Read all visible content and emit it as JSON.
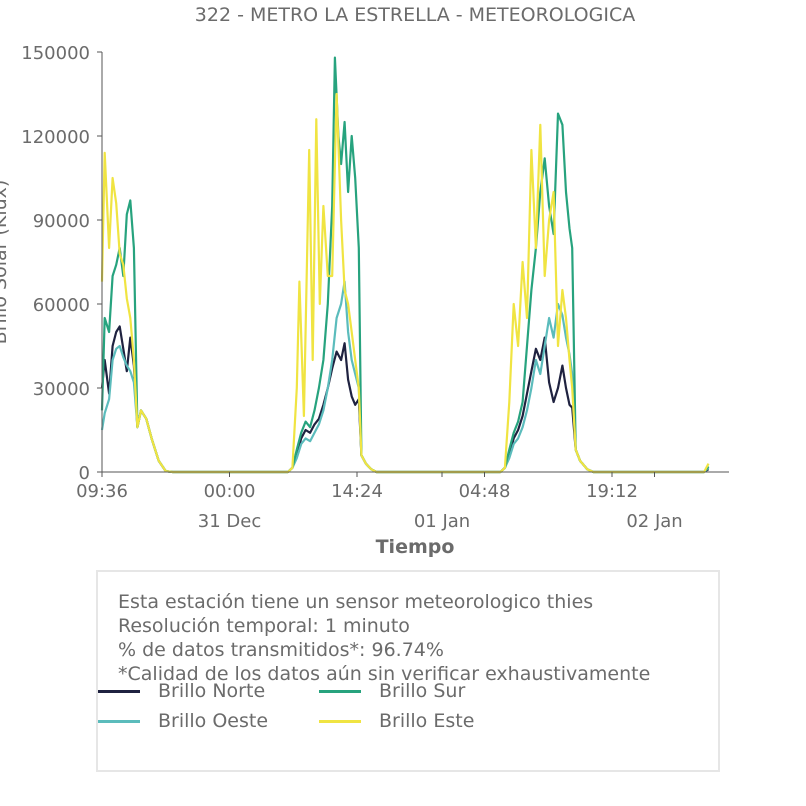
{
  "chart_data": {
    "type": "line",
    "title": "322 - METRO LA ESTRELLA - METEOROLOGICA",
    "xlabel": "Tiempo",
    "ylabel": "Brillo Solar (Klux)",
    "ylim": [
      0,
      150000
    ],
    "yticks": [
      "0",
      "30000",
      "60000",
      "90000",
      "120000",
      "150000"
    ],
    "x_range_hours": [
      0,
      68.5
    ],
    "xticks": [
      {
        "hour": 0.0,
        "label": "09:36",
        "date": ""
      },
      {
        "hour": 14.4,
        "label": "00:00",
        "date": "31 Dec"
      },
      {
        "hour": 28.8,
        "label": "14:24",
        "date": ""
      },
      {
        "hour": 38.4,
        "label": "",
        "date": "01 Jan"
      },
      {
        "hour": 43.2,
        "label": "04:48",
        "date": ""
      },
      {
        "hour": 57.6,
        "label": "19:12",
        "date": ""
      },
      {
        "hour": 62.4,
        "label": "",
        "date": "02 Jan"
      }
    ],
    "series": [
      {
        "name": "Brillo Norte",
        "color": "#1f2240",
        "points": [
          [
            0,
            30000
          ],
          [
            0.3,
            40000
          ],
          [
            0.8,
            28000
          ],
          [
            1.2,
            45000
          ],
          [
            1.6,
            50000
          ],
          [
            2.0,
            52000
          ],
          [
            2.4,
            44000
          ],
          [
            2.8,
            36000
          ],
          [
            3.2,
            48000
          ],
          [
            3.6,
            38000
          ],
          [
            4.0,
            16000
          ],
          [
            4.4,
            22000
          ],
          [
            5.0,
            19000
          ],
          [
            5.6,
            12000
          ],
          [
            6.4,
            4000
          ],
          [
            7.2,
            300
          ],
          [
            8,
            0
          ],
          [
            21,
            0
          ],
          [
            21.5,
            1500
          ],
          [
            22,
            6000
          ],
          [
            22.5,
            12000
          ],
          [
            23,
            15000
          ],
          [
            23.5,
            14000
          ],
          [
            24,
            17000
          ],
          [
            24.5,
            19000
          ],
          [
            25,
            24000
          ],
          [
            25.5,
            30000
          ],
          [
            26,
            37000
          ],
          [
            26.5,
            43000
          ],
          [
            27,
            40000
          ],
          [
            27.4,
            46000
          ],
          [
            27.8,
            33000
          ],
          [
            28.2,
            27000
          ],
          [
            28.6,
            24000
          ],
          [
            29,
            26000
          ],
          [
            29.3,
            6000
          ],
          [
            29.8,
            3000
          ],
          [
            30.4,
            1000
          ],
          [
            31,
            0
          ],
          [
            45,
            0
          ],
          [
            45.5,
            1500
          ],
          [
            46,
            6000
          ],
          [
            46.5,
            12000
          ],
          [
            47,
            15000
          ],
          [
            47.5,
            20000
          ],
          [
            48,
            28000
          ],
          [
            48.5,
            36000
          ],
          [
            49,
            44000
          ],
          [
            49.5,
            40000
          ],
          [
            50,
            48000
          ],
          [
            50.5,
            32000
          ],
          [
            51,
            25000
          ],
          [
            51.5,
            30000
          ],
          [
            52,
            38000
          ],
          [
            52.4,
            30000
          ],
          [
            52.8,
            24000
          ],
          [
            53.1,
            23000
          ],
          [
            53.5,
            8000
          ],
          [
            54,
            4000
          ],
          [
            54.8,
            1000
          ],
          [
            55.5,
            0
          ],
          [
            68,
            0
          ],
          [
            68.5,
            1000
          ]
        ]
      },
      {
        "name": "Brillo Sur",
        "color": "#27a37e",
        "points": [
          [
            0,
            22000
          ],
          [
            0.3,
            55000
          ],
          [
            0.8,
            50000
          ],
          [
            1.2,
            70000
          ],
          [
            1.6,
            74000
          ],
          [
            2.0,
            80000
          ],
          [
            2.4,
            70000
          ],
          [
            2.8,
            92000
          ],
          [
            3.2,
            97000
          ],
          [
            3.6,
            80000
          ],
          [
            4.0,
            16000
          ],
          [
            4.4,
            22000
          ],
          [
            5.0,
            19000
          ],
          [
            5.6,
            12000
          ],
          [
            6.4,
            4000
          ],
          [
            7.2,
            300
          ],
          [
            8,
            0
          ],
          [
            21,
            0
          ],
          [
            21.5,
            1500
          ],
          [
            22,
            8000
          ],
          [
            22.5,
            14000
          ],
          [
            23,
            18000
          ],
          [
            23.5,
            16000
          ],
          [
            24,
            22000
          ],
          [
            24.5,
            30000
          ],
          [
            25,
            40000
          ],
          [
            25.5,
            60000
          ],
          [
            26,
            95000
          ],
          [
            26.3,
            148000
          ],
          [
            26.7,
            120000
          ],
          [
            27,
            110000
          ],
          [
            27.4,
            125000
          ],
          [
            27.8,
            100000
          ],
          [
            28.2,
            120000
          ],
          [
            28.6,
            105000
          ],
          [
            29,
            80000
          ],
          [
            29.3,
            6000
          ],
          [
            29.8,
            3000
          ],
          [
            30.4,
            1000
          ],
          [
            31,
            0
          ],
          [
            45,
            0
          ],
          [
            45.5,
            1500
          ],
          [
            46,
            8000
          ],
          [
            46.5,
            14000
          ],
          [
            47,
            18000
          ],
          [
            47.5,
            25000
          ],
          [
            48,
            45000
          ],
          [
            48.5,
            65000
          ],
          [
            49,
            80000
          ],
          [
            49.5,
            100000
          ],
          [
            50,
            112000
          ],
          [
            50.5,
            95000
          ],
          [
            51,
            85000
          ],
          [
            51.5,
            128000
          ],
          [
            52,
            124000
          ],
          [
            52.4,
            100000
          ],
          [
            52.8,
            87000
          ],
          [
            53.1,
            80000
          ],
          [
            53.5,
            8000
          ],
          [
            54,
            4000
          ],
          [
            54.8,
            1000
          ],
          [
            55.5,
            0
          ],
          [
            68,
            0
          ],
          [
            68.5,
            2000
          ]
        ]
      },
      {
        "name": "Brillo Oeste",
        "color": "#5bbcbc",
        "points": [
          [
            0,
            15000
          ],
          [
            0.3,
            21000
          ],
          [
            0.8,
            26000
          ],
          [
            1.2,
            40000
          ],
          [
            1.6,
            44000
          ],
          [
            2.0,
            45000
          ],
          [
            2.4,
            41000
          ],
          [
            2.8,
            38000
          ],
          [
            3.2,
            36000
          ],
          [
            3.6,
            32000
          ],
          [
            4.0,
            16000
          ],
          [
            4.4,
            22000
          ],
          [
            5.0,
            19000
          ],
          [
            5.6,
            12000
          ],
          [
            6.4,
            4000
          ],
          [
            7.2,
            300
          ],
          [
            8,
            0
          ],
          [
            21,
            0
          ],
          [
            21.5,
            1500
          ],
          [
            22,
            5000
          ],
          [
            22.5,
            10000
          ],
          [
            23,
            12000
          ],
          [
            23.5,
            11000
          ],
          [
            24,
            14000
          ],
          [
            24.5,
            17000
          ],
          [
            25,
            22000
          ],
          [
            25.5,
            30000
          ],
          [
            26,
            40000
          ],
          [
            26.5,
            55000
          ],
          [
            27,
            60000
          ],
          [
            27.4,
            68000
          ],
          [
            27.8,
            50000
          ],
          [
            28.2,
            40000
          ],
          [
            28.6,
            35000
          ],
          [
            29,
            30000
          ],
          [
            29.3,
            6000
          ],
          [
            29.8,
            3000
          ],
          [
            30.4,
            1000
          ],
          [
            31,
            0
          ],
          [
            45,
            0
          ],
          [
            45.5,
            1500
          ],
          [
            46,
            5000
          ],
          [
            46.5,
            10000
          ],
          [
            47,
            12000
          ],
          [
            47.5,
            16000
          ],
          [
            48,
            22000
          ],
          [
            48.5,
            30000
          ],
          [
            49,
            40000
          ],
          [
            49.5,
            35000
          ],
          [
            50,
            45000
          ],
          [
            50.5,
            55000
          ],
          [
            51,
            48000
          ],
          [
            51.5,
            60000
          ],
          [
            52,
            56000
          ],
          [
            52.4,
            48000
          ],
          [
            52.8,
            42000
          ],
          [
            53.1,
            35000
          ],
          [
            53.5,
            8000
          ],
          [
            54,
            4000
          ],
          [
            54.8,
            1000
          ],
          [
            55.5,
            0
          ],
          [
            68,
            0
          ],
          [
            68.5,
            1500
          ]
        ]
      },
      {
        "name": "Brillo Este",
        "color": "#f0e442",
        "points": [
          [
            0,
            68000
          ],
          [
            0.3,
            114000
          ],
          [
            0.8,
            80000
          ],
          [
            1.2,
            105000
          ],
          [
            1.6,
            96000
          ],
          [
            2.0,
            78000
          ],
          [
            2.4,
            74000
          ],
          [
            2.8,
            62000
          ],
          [
            3.2,
            55000
          ],
          [
            3.6,
            40000
          ],
          [
            4.0,
            16000
          ],
          [
            4.4,
            22000
          ],
          [
            5.0,
            19000
          ],
          [
            5.6,
            12000
          ],
          [
            6.4,
            4000
          ],
          [
            7.2,
            300
          ],
          [
            8,
            0
          ],
          [
            21,
            0
          ],
          [
            21.5,
            1500
          ],
          [
            22,
            30000
          ],
          [
            22.3,
            68000
          ],
          [
            22.8,
            20000
          ],
          [
            23.4,
            115000
          ],
          [
            23.8,
            40000
          ],
          [
            24.2,
            126000
          ],
          [
            24.6,
            60000
          ],
          [
            25,
            95000
          ],
          [
            25.5,
            70000
          ],
          [
            26,
            70000
          ],
          [
            26.5,
            135000
          ],
          [
            27,
            90000
          ],
          [
            27.4,
            65000
          ],
          [
            27.8,
            60000
          ],
          [
            28.2,
            50000
          ],
          [
            28.6,
            40000
          ],
          [
            29,
            30000
          ],
          [
            29.3,
            6000
          ],
          [
            29.8,
            3000
          ],
          [
            30.4,
            1000
          ],
          [
            31,
            0
          ],
          [
            45,
            0
          ],
          [
            45.5,
            1500
          ],
          [
            46,
            25000
          ],
          [
            46.5,
            60000
          ],
          [
            47,
            45000
          ],
          [
            47.5,
            75000
          ],
          [
            48,
            55000
          ],
          [
            48.5,
            115000
          ],
          [
            49,
            80000
          ],
          [
            49.5,
            124000
          ],
          [
            50,
            70000
          ],
          [
            50.5,
            90000
          ],
          [
            51,
            100000
          ],
          [
            51.5,
            45000
          ],
          [
            52,
            65000
          ],
          [
            52.4,
            55000
          ],
          [
            52.8,
            40000
          ],
          [
            53.1,
            30000
          ],
          [
            53.5,
            8000
          ],
          [
            54,
            4000
          ],
          [
            54.8,
            1000
          ],
          [
            55.5,
            0
          ],
          [
            68,
            0
          ],
          [
            68.5,
            3000
          ]
        ]
      }
    ]
  },
  "info": {
    "line1": "Esta estación tiene un sensor meteorologico thies",
    "line2": "Resolución temporal: 1 minuto",
    "line3": "% de datos transmitidos*: 96.74%",
    "line4": "*Calidad de los datos aún sin verificar exhaustivamente"
  },
  "legend": {
    "norte": {
      "label": "Brillo Norte",
      "color": "#1f2240"
    },
    "sur": {
      "label": "Brillo Sur",
      "color": "#27a37e"
    },
    "oeste": {
      "label": "Brillo Oeste",
      "color": "#5bbcbc"
    },
    "este": {
      "label": "Brillo Este",
      "color": "#f0e442"
    }
  }
}
